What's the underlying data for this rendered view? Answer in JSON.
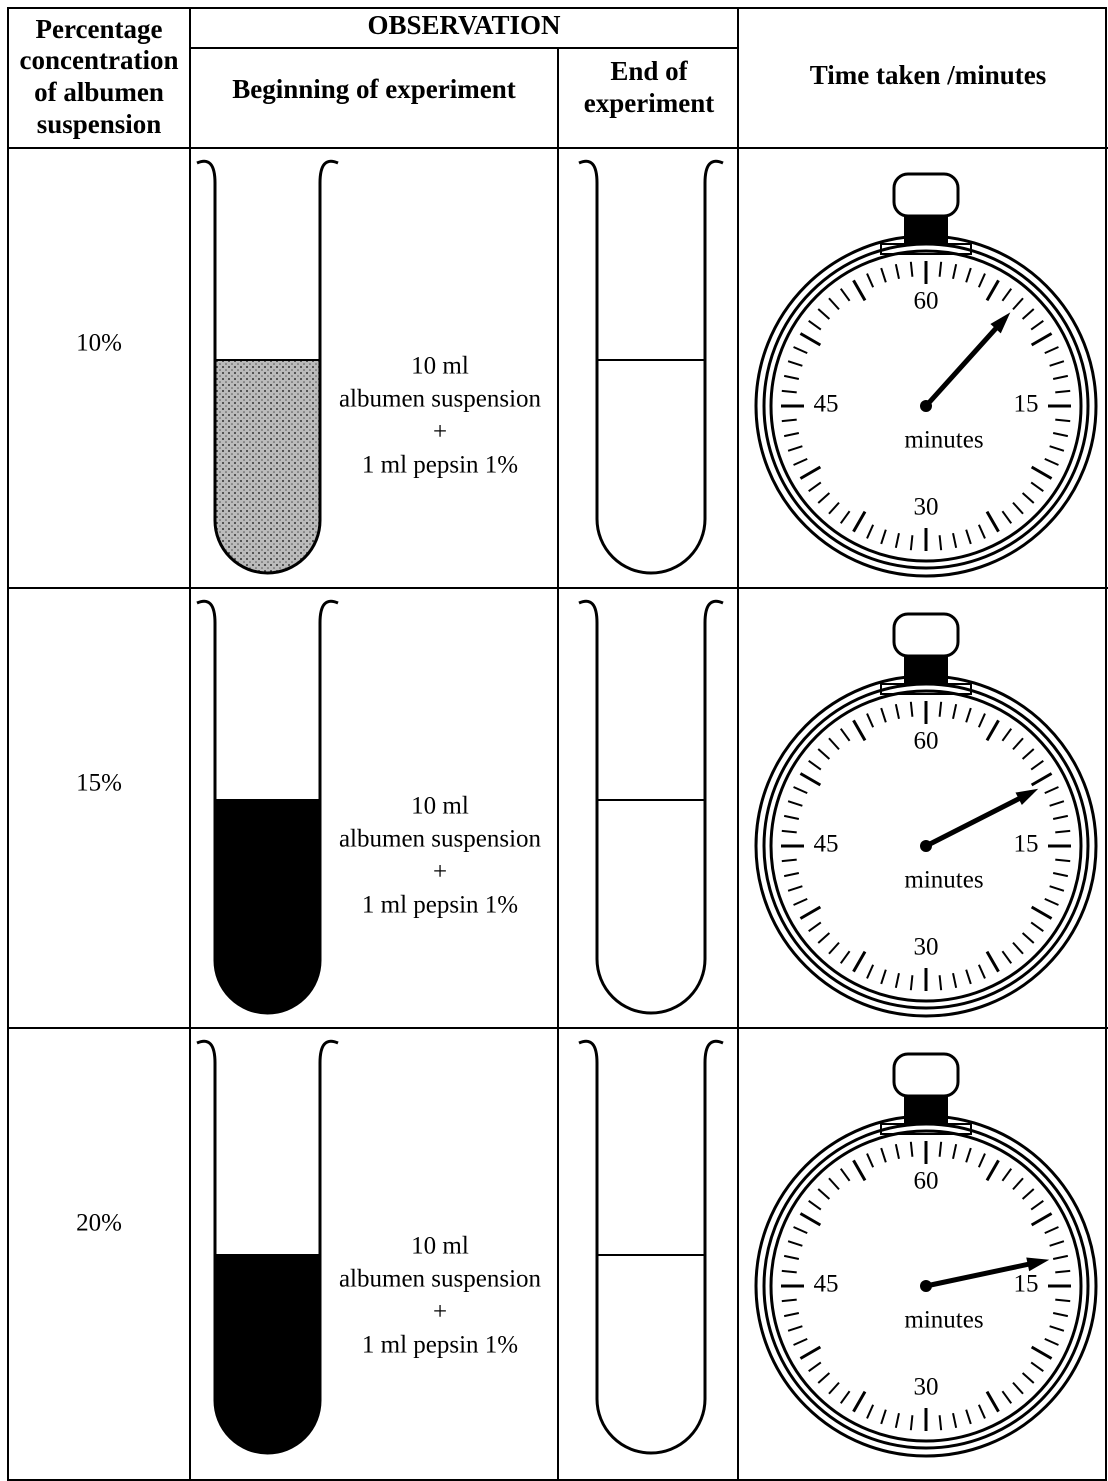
{
  "header": {
    "concentration": [
      "Percentage",
      "concentration",
      "of albumen",
      "suspension"
    ],
    "observation": "OBSERVATION",
    "beginning": "Beginning of experiment",
    "end": [
      "End of",
      "experiment"
    ],
    "time": "Time taken /minutes"
  },
  "dial": {
    "labels": [
      "60",
      "15",
      "30",
      "45"
    ],
    "unit": "minutes"
  },
  "rows": [
    {
      "concentration": "10%",
      "beginning": [
        "10 ml",
        "albumen suspension",
        "+",
        "1 ml pepsin 1%"
      ],
      "time_minutes": 7
    },
    {
      "concentration": "15%",
      "beginning": [
        "10 ml",
        "albumen suspension",
        "+",
        "1 ml pepsin 1%"
      ],
      "time_minutes": 10.5
    },
    {
      "concentration": "20%",
      "beginning": [
        "10 ml",
        "albumen suspension",
        "+",
        "1 ml pepsin 1%"
      ],
      "time_minutes": 13
    }
  ]
}
